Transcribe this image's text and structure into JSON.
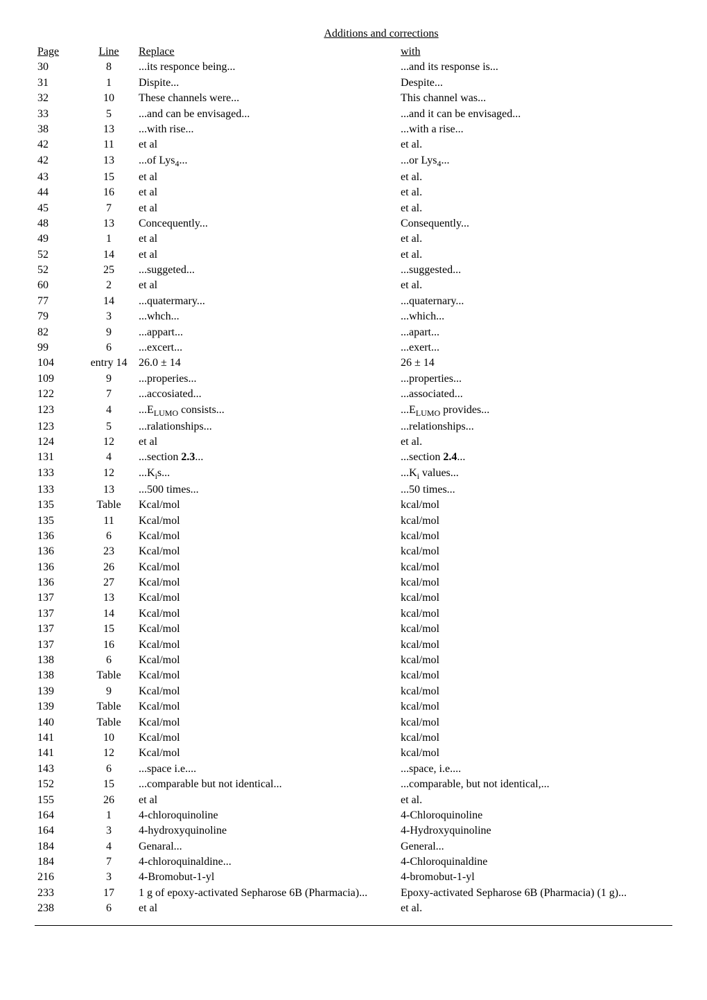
{
  "title": "Additions and corrections",
  "headers": {
    "page": "Page",
    "line": "Line",
    "replace": "Replace",
    "with": "with"
  },
  "rows": [
    {
      "page": "30",
      "line": "8",
      "replace": "...its responce being...",
      "with": "...and its response is..."
    },
    {
      "page": "31",
      "line": "1",
      "replace": "Dispite...",
      "with": "Despite..."
    },
    {
      "page": "32",
      "line": "10",
      "replace": "These channels were...",
      "with": "This channel was..."
    },
    {
      "page": "33",
      "line": "5",
      "replace": "...and can be envisaged...",
      "with": "...and it can be envisaged..."
    },
    {
      "page": "38",
      "line": "13",
      "replace": "...with rise...",
      "with": "...with a rise..."
    },
    {
      "page": "42",
      "line": "11",
      "replace": "et al",
      "with": "et al."
    },
    {
      "page": "42",
      "line": "13",
      "replace": "...of Lys<sub>4</sub>...",
      "with": "...or Lys<sub>4</sub>..."
    },
    {
      "page": "43",
      "line": "15",
      "replace": "et al",
      "with": "et al."
    },
    {
      "page": "44",
      "line": "16",
      "replace": "et al",
      "with": "et al."
    },
    {
      "page": "45",
      "line": "7",
      "replace": "et al",
      "with": "et al."
    },
    {
      "page": "48",
      "line": "13",
      "replace": "Concequently...",
      "with": "Consequently..."
    },
    {
      "page": "49",
      "line": "1",
      "replace": "et al",
      "with": "et al."
    },
    {
      "page": "52",
      "line": "14",
      "replace": "et al",
      "with": "et al."
    },
    {
      "page": "52",
      "line": "25",
      "replace": "...suggeted...",
      "with": "...suggested..."
    },
    {
      "page": "60",
      "line": "2",
      "replace": "et al",
      "with": "et al."
    },
    {
      "page": "77",
      "line": "14",
      "replace": "...quatermary...",
      "with": "...quaternary..."
    },
    {
      "page": "79",
      "line": "3",
      "replace": "...whch...",
      "with": "...which..."
    },
    {
      "page": "82",
      "line": "9",
      "replace": "...appart...",
      "with": "...apart..."
    },
    {
      "page": "99",
      "line": "6",
      "replace": "...excert...",
      "with": "...exert..."
    },
    {
      "page": "104",
      "line": "entry 14",
      "replace": "26.0 ± 14",
      "with": "26 ± 14"
    },
    {
      "page": "109",
      "line": "9",
      "replace": "...properies...",
      "with": "...properties..."
    },
    {
      "page": "122",
      "line": "7",
      "replace": "...accosiated...",
      "with": "...associated..."
    },
    {
      "page": "123",
      "line": "4",
      "replace": "...E<sub>LUMO</sub> consists...",
      "with": "...E<sub>LUMO</sub> provides..."
    },
    {
      "page": "123",
      "line": "5",
      "replace": "...ralationships...",
      "with": "...relationships..."
    },
    {
      "page": "124",
      "line": "12",
      "replace": "et al",
      "with": "et al."
    },
    {
      "page": "131",
      "line": "4",
      "replace": "...section <b>2.3</b>...",
      "with": "...section <b>2.4</b>..."
    },
    {
      "page": "133",
      "line": "12",
      "replace": "...K<sub>i</sub>s...",
      "with": "...K<sub>i</sub> values..."
    },
    {
      "page": "133",
      "line": "13",
      "replace": "...500 times...",
      "with": "...50 times..."
    },
    {
      "page": "135",
      "line": "Table",
      "replace": "Kcal/mol",
      "with": "kcal/mol"
    },
    {
      "page": "135",
      "line": "11",
      "replace": "Kcal/mol",
      "with": "kcal/mol"
    },
    {
      "page": "136",
      "line": "6",
      "replace": "Kcal/mol",
      "with": "kcal/mol"
    },
    {
      "page": "136",
      "line": "23",
      "replace": "Kcal/mol",
      "with": "kcal/mol"
    },
    {
      "page": "136",
      "line": "26",
      "replace": "Kcal/mol",
      "with": "kcal/mol"
    },
    {
      "page": "136",
      "line": "27",
      "replace": "Kcal/mol",
      "with": "kcal/mol"
    },
    {
      "page": "137",
      "line": "13",
      "replace": "Kcal/mol",
      "with": "kcal/mol"
    },
    {
      "page": "137",
      "line": "14",
      "replace": "Kcal/mol",
      "with": "kcal/mol"
    },
    {
      "page": "137",
      "line": "15",
      "replace": "Kcal/mol",
      "with": "kcal/mol"
    },
    {
      "page": "137",
      "line": "16",
      "replace": "Kcal/mol",
      "with": "kcal/mol"
    },
    {
      "page": "138",
      "line": "6",
      "replace": "Kcal/mol",
      "with": "kcal/mol"
    },
    {
      "page": "138",
      "line": "Table",
      "replace": "Kcal/mol",
      "with": "kcal/mol"
    },
    {
      "page": "139",
      "line": "9",
      "replace": "Kcal/mol",
      "with": "kcal/mol"
    },
    {
      "page": "139",
      "line": "Table",
      "replace": "Kcal/mol",
      "with": "kcal/mol"
    },
    {
      "page": "140",
      "line": "Table",
      "replace": "Kcal/mol",
      "with": "kcal/mol"
    },
    {
      "page": "141",
      "line": "10",
      "replace": "Kcal/mol",
      "with": "kcal/mol"
    },
    {
      "page": "141",
      "line": "12",
      "replace": "Kcal/mol",
      "with": "kcal/mol"
    },
    {
      "page": "143",
      "line": "6",
      "replace": "...space i.e....",
      "with": "...space, i.e...."
    },
    {
      "page": "152",
      "line": "15",
      "replace": "...comparable but not identical...",
      "with": "...comparable, but not identical,..."
    },
    {
      "page": "155",
      "line": "26",
      "replace": "et al",
      "with": "et al."
    },
    {
      "page": "164",
      "line": "1",
      "replace": "4-chloroquinoline",
      "with": "4-Chloroquinoline"
    },
    {
      "page": "164",
      "line": "3",
      "replace": "4-hydroxyquinoline",
      "with": "4-Hydroxyquinoline"
    },
    {
      "page": "184",
      "line": "4",
      "replace": "Genaral...",
      "with": "General..."
    },
    {
      "page": "184",
      "line": "7",
      "replace": "4-chloroquinaldine...",
      "with": "4-Chloroquinaldine"
    },
    {
      "page": "216",
      "line": "3",
      "replace": "4-Bromobut-1-yl",
      "with": "4-bromobut-1-yl"
    },
    {
      "page": "233",
      "line": "17",
      "replace": "1 g of epoxy-activated Sepharose 6B (Pharmacia)...",
      "with": "Epoxy-activated Sepharose 6B (Pharmacia) (1 g)..."
    },
    {
      "page": "238",
      "line": "6",
      "replace": "et al",
      "with": "et al."
    }
  ]
}
